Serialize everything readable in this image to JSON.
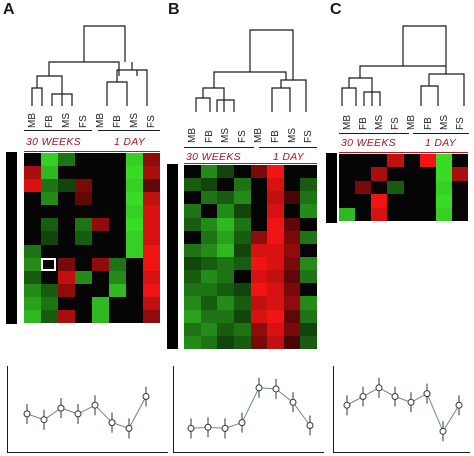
{
  "panels": [
    {
      "letter": "A",
      "group1_label": "30 WEEKS",
      "group2_label": "1 DAY",
      "columns": [
        "MB",
        "FB",
        "MS",
        "FS",
        "MB",
        "FB",
        "MS",
        "FS"
      ],
      "rows": 13,
      "heatmap": [
        [
          0,
          0.9,
          0.5,
          0,
          0,
          0,
          0.9,
          -0.6
        ],
        [
          -0.7,
          0.8,
          0,
          0,
          0,
          0,
          0.95,
          -0.7
        ],
        [
          -0.9,
          0.5,
          0.3,
          -0.5,
          0,
          0,
          0.9,
          -0.4
        ],
        [
          0,
          0.6,
          0,
          -0.4,
          0,
          0,
          0.95,
          -0.8
        ],
        [
          0,
          0,
          0,
          0,
          0,
          0,
          0.9,
          -0.9
        ],
        [
          0,
          0.4,
          0,
          0.5,
          -0.6,
          0,
          0.95,
          -0.9
        ],
        [
          0,
          0.3,
          0,
          0.4,
          0,
          0,
          0.9,
          -0.9
        ],
        [
          0.5,
          0,
          0,
          0,
          0,
          0,
          0.9,
          -1
        ],
        [
          0.6,
          0,
          -0.5,
          0,
          -0.6,
          0.5,
          0,
          -1
        ],
        [
          0.4,
          0,
          -0.8,
          0.6,
          0,
          0.6,
          0,
          -0.9
        ],
        [
          0.6,
          0.4,
          -0.6,
          0,
          0,
          0.8,
          0,
          -1
        ],
        [
          0.7,
          0.5,
          0,
          0,
          0.8,
          0,
          0,
          -0.8
        ],
        [
          0.8,
          0.4,
          -0.7,
          0,
          0.8,
          0,
          0,
          -0.6
        ]
      ],
      "profile": [
        0.45,
        0.35,
        0.55,
        0.45,
        0.6,
        0.3,
        0.2,
        0.75
      ]
    },
    {
      "letter": "B",
      "group1_label": "30 WEEKS",
      "group2_label": "1 DAY",
      "columns": [
        "MB",
        "FB",
        "MS",
        "FS",
        "MB",
        "FB",
        "MS",
        "FS"
      ],
      "rows": 14,
      "heatmap": [
        [
          0,
          0.6,
          0.3,
          0,
          -0.5,
          -1,
          0,
          0
        ],
        [
          0.4,
          0.3,
          0,
          0.5,
          0,
          -0.9,
          0,
          0.4
        ],
        [
          0,
          0.5,
          0.4,
          0.6,
          0,
          -0.8,
          -0.3,
          0.5
        ],
        [
          0.5,
          0,
          0.6,
          0.3,
          0,
          -0.9,
          0,
          0.6
        ],
        [
          0.4,
          0.6,
          0.8,
          0.5,
          0,
          -1,
          -0.4,
          0
        ],
        [
          0,
          0.5,
          0.7,
          0.4,
          -0.6,
          -1,
          -0.5,
          0.5
        ],
        [
          0.5,
          0.6,
          0.8,
          0.3,
          -0.9,
          -0.9,
          -0.6,
          0
        ],
        [
          0.3,
          0.4,
          0.5,
          0.4,
          -1,
          -0.9,
          -0.5,
          0.6
        ],
        [
          0.4,
          0.6,
          0.5,
          0,
          -0.9,
          -0.8,
          -0.4,
          0.5
        ],
        [
          0.5,
          0.5,
          0.4,
          0.3,
          -1,
          -0.9,
          -0.5,
          0
        ],
        [
          0.6,
          0.4,
          0.6,
          0.4,
          -0.8,
          -0.9,
          -0.6,
          0.6
        ],
        [
          0.7,
          0.5,
          0.5,
          0.3,
          -0.9,
          -1,
          -0.4,
          0.5
        ],
        [
          0.5,
          0.6,
          0.4,
          0.5,
          -0.6,
          -0.9,
          -0.5,
          0.3
        ],
        [
          0.6,
          0.5,
          0.3,
          0.4,
          -0.5,
          -0.8,
          -0.3,
          0.4
        ]
      ],
      "profile": [
        0.2,
        0.22,
        0.2,
        0.3,
        0.9,
        0.88,
        0.65,
        0.25
      ]
    },
    {
      "letter": "C",
      "group1_label": "30 WEEKS",
      "group2_label": "1 DAY",
      "columns": [
        "MB",
        "FB",
        "MS",
        "FS",
        "MB",
        "FB",
        "MS",
        "FS"
      ],
      "rows": 5,
      "heatmap": [
        [
          0,
          0,
          0,
          -0.8,
          0,
          -1,
          0.95,
          0
        ],
        [
          0,
          0,
          -0.7,
          0,
          0,
          0,
          0.95,
          -0.7
        ],
        [
          0,
          -0.5,
          0,
          0.4,
          0,
          0,
          0.9,
          0
        ],
        [
          0,
          0,
          -1,
          0,
          0,
          0,
          0.95,
          0
        ],
        [
          0.8,
          0,
          -0.9,
          0,
          0,
          0,
          0.9,
          0
        ]
      ],
      "profile": [
        0.6,
        0.75,
        0.9,
        0.75,
        0.65,
        0.8,
        0.15,
        0.6
      ]
    }
  ]
}
